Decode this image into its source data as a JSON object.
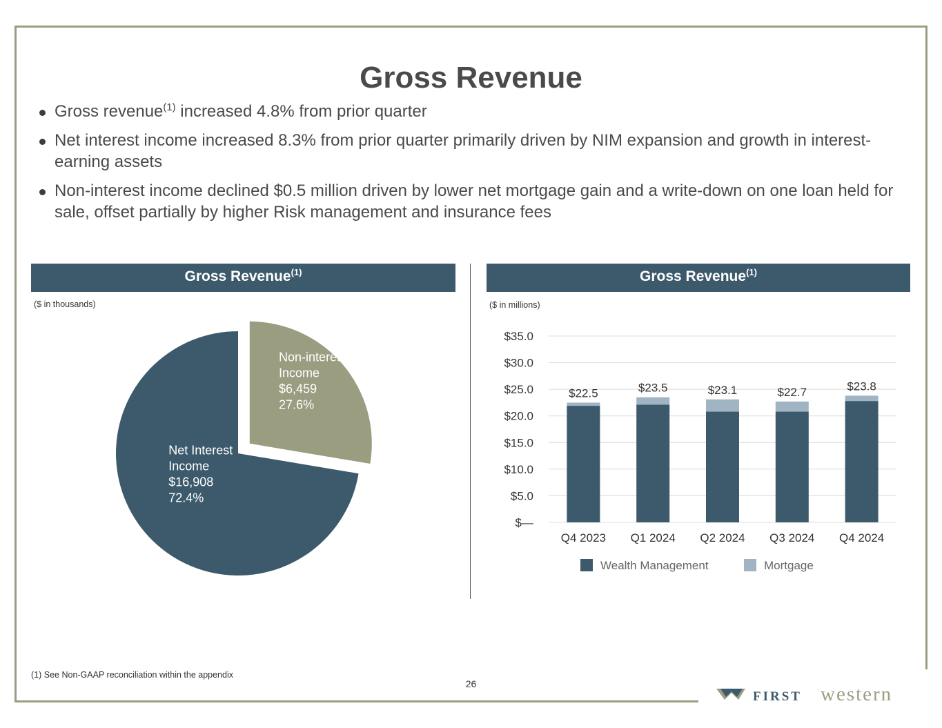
{
  "page": {
    "title": "Gross Revenue",
    "page_number": "26",
    "footnote": "(1) See Non-GAAP reconciliation within the appendix"
  },
  "bullets": [
    {
      "pre": "Gross revenue",
      "sup": "(1)",
      "post": " increased  4.8% from prior quarter"
    },
    {
      "pre": "Net interest income increased 8.3% from prior quarter primarily driven by NIM expansion and growth in interest-earning assets",
      "sup": "",
      "post": ""
    },
    {
      "pre": "Non-interest income declined $0.5 million driven by lower net mortgage gain and a write-down on one loan held for sale, offset partially by higher Risk management and insurance fees",
      "sup": "",
      "post": ""
    }
  ],
  "left_panel": {
    "title": "Gross Revenue",
    "title_sup": "(1)",
    "units": "($ in thousands)"
  },
  "right_panel": {
    "title": "Gross Revenue",
    "title_sup": "(1)",
    "units": "($ in millions)"
  },
  "logo": {
    "first": "FIRST",
    "western": "western"
  },
  "colors": {
    "primary": "#3d5a6c",
    "olive": "#9a9d80",
    "mortgage": "#a0b4c3",
    "frame": "#9a9d80"
  },
  "chart_data": [
    {
      "type": "pie",
      "title": "Gross Revenue",
      "units": "($ in thousands)",
      "slices": [
        {
          "label_line1": "Non-interest",
          "label_line2": "Income",
          "value": 6459,
          "value_label": "$6,459",
          "percent_label": "27.6%",
          "color": "#9a9d80",
          "exploded": true
        },
        {
          "label_line1": "Net Interest",
          "label_line2": "Income",
          "value": 16908,
          "value_label": "$16,908",
          "percent_label": "72.4%",
          "color": "#3d5a6c",
          "exploded": false
        }
      ]
    },
    {
      "type": "bar",
      "stacked": true,
      "title": "Gross Revenue",
      "units": "($ in millions)",
      "categories": [
        "Q4 2023",
        "Q1 2024",
        "Q2 2024",
        "Q3 2024",
        "Q4 2024"
      ],
      "series": [
        {
          "name": "Wealth Management",
          "color": "#3d5a6c",
          "values": [
            21.9,
            22.1,
            20.8,
            20.8,
            22.8
          ]
        },
        {
          "name": "Mortgage",
          "color": "#a0b4c3",
          "values": [
            0.6,
            1.4,
            2.3,
            1.9,
            1.0
          ]
        }
      ],
      "totals": [
        "$22.5",
        "$23.5",
        "$23.1",
        "$22.7",
        "$23.8"
      ],
      "total_values": [
        22.5,
        23.5,
        23.1,
        22.7,
        23.8
      ],
      "yticks": [
        0,
        5,
        10,
        15,
        20,
        25,
        30,
        35
      ],
      "ytick_labels": [
        "$—",
        "$5.0",
        "$10.0",
        "$15.0",
        "$20.0",
        "$25.0",
        "$30.0",
        "$35.0"
      ],
      "ylim": [
        0,
        35
      ],
      "grid": true,
      "legend": "bottom"
    }
  ]
}
